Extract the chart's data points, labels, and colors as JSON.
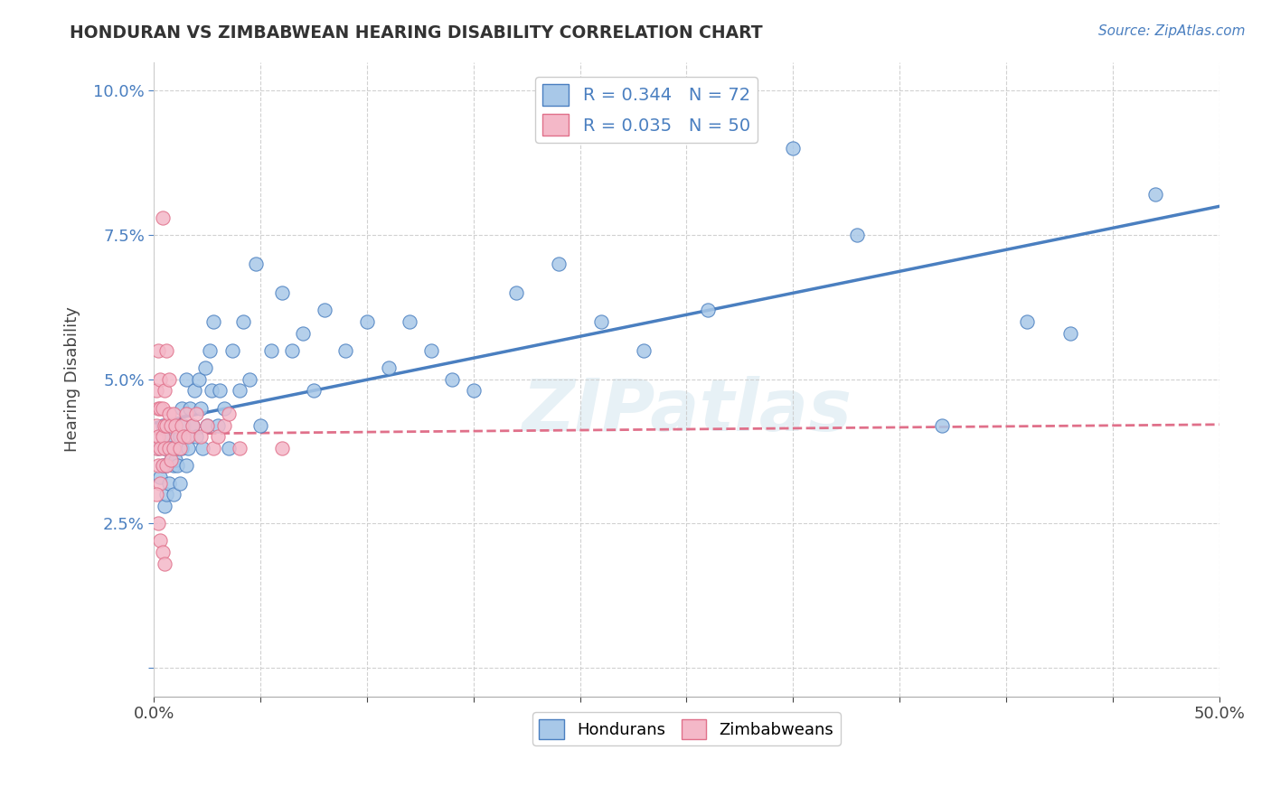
{
  "title": "HONDURAN VS ZIMBABWEAN HEARING DISABILITY CORRELATION CHART",
  "source_text": "Source: ZipAtlas.com",
  "ylabel": "Hearing Disability",
  "xlim": [
    0.0,
    0.5
  ],
  "ylim": [
    -0.005,
    0.105
  ],
  "xticks": [
    0.0,
    0.05,
    0.1,
    0.15,
    0.2,
    0.25,
    0.3,
    0.35,
    0.4,
    0.45,
    0.5
  ],
  "xtick_labels": [
    "0.0%",
    "",
    "",
    "",
    "",
    "",
    "",
    "",
    "",
    "",
    "50.0%"
  ],
  "yticks": [
    0.0,
    0.025,
    0.05,
    0.075,
    0.1
  ],
  "ytick_labels": [
    "",
    "2.5%",
    "5.0%",
    "7.5%",
    "10.0%"
  ],
  "honduran_color": "#a8c8e8",
  "zimbabwean_color": "#f4b8c8",
  "honduran_line_color": "#4a7fc0",
  "zimbabwean_line_color": "#e0708a",
  "watermark": "ZIPatlas",
  "background_color": "#ffffff",
  "grid_color": "#cccccc",
  "hondurans_x": [
    0.002,
    0.003,
    0.004,
    0.004,
    0.005,
    0.005,
    0.006,
    0.006,
    0.007,
    0.007,
    0.008,
    0.008,
    0.009,
    0.009,
    0.01,
    0.01,
    0.011,
    0.011,
    0.012,
    0.012,
    0.013,
    0.013,
    0.014,
    0.015,
    0.015,
    0.016,
    0.017,
    0.018,
    0.019,
    0.02,
    0.021,
    0.022,
    0.023,
    0.024,
    0.025,
    0.026,
    0.027,
    0.028,
    0.03,
    0.031,
    0.033,
    0.035,
    0.037,
    0.04,
    0.042,
    0.045,
    0.048,
    0.05,
    0.055,
    0.06,
    0.065,
    0.07,
    0.075,
    0.08,
    0.09,
    0.1,
    0.11,
    0.12,
    0.13,
    0.14,
    0.15,
    0.17,
    0.19,
    0.21,
    0.23,
    0.26,
    0.3,
    0.33,
    0.37,
    0.41,
    0.43,
    0.47
  ],
  "hondurans_y": [
    0.038,
    0.033,
    0.035,
    0.042,
    0.038,
    0.028,
    0.03,
    0.035,
    0.032,
    0.04,
    0.036,
    0.038,
    0.035,
    0.03,
    0.036,
    0.042,
    0.035,
    0.038,
    0.032,
    0.04,
    0.038,
    0.045,
    0.042,
    0.035,
    0.05,
    0.038,
    0.045,
    0.042,
    0.048,
    0.04,
    0.05,
    0.045,
    0.038,
    0.052,
    0.042,
    0.055,
    0.048,
    0.06,
    0.042,
    0.048,
    0.045,
    0.038,
    0.055,
    0.048,
    0.06,
    0.05,
    0.07,
    0.042,
    0.055,
    0.065,
    0.055,
    0.058,
    0.048,
    0.062,
    0.055,
    0.06,
    0.052,
    0.06,
    0.055,
    0.05,
    0.048,
    0.065,
    0.07,
    0.06,
    0.055,
    0.062,
    0.09,
    0.075,
    0.042,
    0.06,
    0.058,
    0.082
  ],
  "zimbabweans_x": [
    0.001,
    0.001,
    0.001,
    0.002,
    0.002,
    0.002,
    0.002,
    0.003,
    0.003,
    0.003,
    0.003,
    0.004,
    0.004,
    0.004,
    0.004,
    0.005,
    0.005,
    0.005,
    0.006,
    0.006,
    0.006,
    0.007,
    0.007,
    0.007,
    0.008,
    0.008,
    0.009,
    0.009,
    0.01,
    0.011,
    0.012,
    0.013,
    0.014,
    0.015,
    0.016,
    0.018,
    0.02,
    0.022,
    0.025,
    0.028,
    0.03,
    0.033,
    0.035,
    0.04,
    0.001,
    0.002,
    0.003,
    0.004,
    0.005,
    0.06
  ],
  "zimbabweans_y": [
    0.038,
    0.042,
    0.048,
    0.035,
    0.04,
    0.045,
    0.055,
    0.032,
    0.038,
    0.045,
    0.05,
    0.035,
    0.04,
    0.045,
    0.078,
    0.038,
    0.042,
    0.048,
    0.035,
    0.042,
    0.055,
    0.038,
    0.044,
    0.05,
    0.036,
    0.042,
    0.038,
    0.044,
    0.042,
    0.04,
    0.038,
    0.042,
    0.04,
    0.044,
    0.04,
    0.042,
    0.044,
    0.04,
    0.042,
    0.038,
    0.04,
    0.042,
    0.044,
    0.038,
    0.03,
    0.025,
    0.022,
    0.02,
    0.018,
    0.038
  ]
}
